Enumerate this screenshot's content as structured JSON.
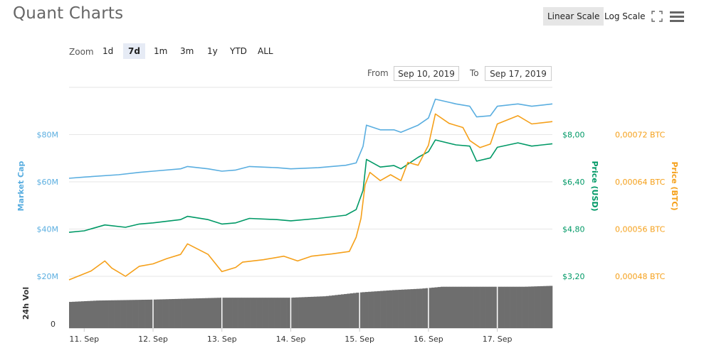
{
  "header": {
    "title": "Quant Charts",
    "linear_scale": "Linear Scale",
    "log_scale": "Log Scale"
  },
  "zoom": {
    "label": "Zoom",
    "buttons": [
      "1d",
      "7d",
      "1m",
      "3m",
      "1y",
      "YTD",
      "ALL"
    ],
    "active": "7d"
  },
  "range": {
    "from_label": "From",
    "from_value": "Sep 10, 2019",
    "to_label": "To",
    "to_value": "Sep 17, 2019"
  },
  "icons": {
    "fullscreen": "fullscreen-icon",
    "menu": "hamburger-menu-icon"
  },
  "colors": {
    "market_cap": "#5aaee0",
    "price_usd": "#009966",
    "price_btc": "#f5a01a",
    "volume": "#6e6e6e"
  },
  "chart_data": {
    "type": "line",
    "x_axis": {
      "tick_labels": [
        "11. Sep",
        "12. Sep",
        "13. Sep",
        "14. Sep",
        "15. Sep",
        "16. Sep",
        "17. Sep"
      ],
      "range": [
        10.78,
        17.8
      ]
    },
    "axes": {
      "market_cap": {
        "title": "Market Cap",
        "tick_labels": [
          "$20M",
          "$40M",
          "$60M",
          "$80M"
        ],
        "ticks": [
          20,
          40,
          60,
          80
        ],
        "range": [
          20,
          100
        ]
      },
      "price_usd": {
        "title": "Price (USD)",
        "tick_labels": [
          "$3,20",
          "$4,80",
          "$6,40",
          "$8,00"
        ],
        "ticks": [
          3.2,
          4.8,
          6.4,
          8.0
        ],
        "range": [
          3.2,
          9.6
        ]
      },
      "price_btc": {
        "title": "Price (BTC)",
        "tick_labels": [
          "0,00048 BTC",
          "0,00056 BTC",
          "0,00064 BTC",
          "0,00072 BTC"
        ],
        "ticks": [
          0.00048,
          0.00056,
          0.00064,
          0.00072
        ],
        "range": [
          0.00048,
          0.0008
        ]
      },
      "volume": {
        "title": "24h Vol",
        "tick_labels": [
          "0"
        ],
        "range": [
          0,
          1
        ]
      }
    },
    "series": [
      {
        "name": "Market Cap",
        "axis": "market_cap",
        "points": [
          [
            10.78,
            61.5
          ],
          [
            11.0,
            62
          ],
          [
            11.5,
            63
          ],
          [
            11.8,
            64
          ],
          [
            12.0,
            64.5
          ],
          [
            12.4,
            65.5
          ],
          [
            12.5,
            66.5
          ],
          [
            12.8,
            65.5
          ],
          [
            13.0,
            64.5
          ],
          [
            13.2,
            65
          ],
          [
            13.4,
            66.5
          ],
          [
            13.8,
            66
          ],
          [
            14.0,
            65.5
          ],
          [
            14.4,
            66
          ],
          [
            14.8,
            67
          ],
          [
            14.95,
            68
          ],
          [
            15.05,
            75
          ],
          [
            15.1,
            84
          ],
          [
            15.3,
            82
          ],
          [
            15.5,
            82
          ],
          [
            15.6,
            81
          ],
          [
            15.85,
            84
          ],
          [
            16.0,
            87
          ],
          [
            16.1,
            95
          ],
          [
            16.4,
            93
          ],
          [
            16.6,
            92
          ],
          [
            16.7,
            87.5
          ],
          [
            16.9,
            88
          ],
          [
            17.0,
            92
          ],
          [
            17.3,
            93
          ],
          [
            17.5,
            92
          ],
          [
            17.8,
            93
          ]
        ]
      },
      {
        "name": "Price (USD)",
        "axis": "price_usd",
        "points": [
          [
            10.78,
            4.69
          ],
          [
            11.0,
            4.74
          ],
          [
            11.3,
            4.94
          ],
          [
            11.6,
            4.86
          ],
          [
            11.8,
            4.97
          ],
          [
            12.0,
            5.01
          ],
          [
            12.4,
            5.12
          ],
          [
            12.5,
            5.23
          ],
          [
            12.8,
            5.12
          ],
          [
            13.0,
            4.97
          ],
          [
            13.2,
            5.01
          ],
          [
            13.4,
            5.16
          ],
          [
            13.8,
            5.12
          ],
          [
            14.0,
            5.08
          ],
          [
            14.4,
            5.16
          ],
          [
            14.8,
            5.27
          ],
          [
            14.95,
            5.46
          ],
          [
            15.05,
            6.11
          ],
          [
            15.1,
            7.16
          ],
          [
            15.3,
            6.9
          ],
          [
            15.5,
            6.95
          ],
          [
            15.6,
            6.84
          ],
          [
            15.85,
            7.23
          ],
          [
            16.0,
            7.42
          ],
          [
            16.1,
            7.82
          ],
          [
            16.4,
            7.65
          ],
          [
            16.6,
            7.61
          ],
          [
            16.7,
            7.1
          ],
          [
            16.9,
            7.21
          ],
          [
            17.0,
            7.57
          ],
          [
            17.3,
            7.72
          ],
          [
            17.5,
            7.61
          ],
          [
            17.8,
            7.69
          ]
        ]
      },
      {
        "name": "Price (BTC)",
        "axis": "price_btc",
        "points": [
          [
            10.78,
            0.000474
          ],
          [
            11.1,
            0.000489
          ],
          [
            11.3,
            0.000506
          ],
          [
            11.4,
            0.000494
          ],
          [
            11.6,
            0.00048
          ],
          [
            11.8,
            0.000497
          ],
          [
            12.0,
            0.000501
          ],
          [
            12.2,
            0.00051
          ],
          [
            12.4,
            0.000517
          ],
          [
            12.5,
            0.000535
          ],
          [
            12.8,
            0.000517
          ],
          [
            13.0,
            0.000488
          ],
          [
            13.2,
            0.000495
          ],
          [
            13.3,
            0.000504
          ],
          [
            13.6,
            0.000508
          ],
          [
            13.9,
            0.000514
          ],
          [
            14.1,
            0.000506
          ],
          [
            14.3,
            0.000514
          ],
          [
            14.6,
            0.000518
          ],
          [
            14.85,
            0.000522
          ],
          [
            14.95,
            0.000546
          ],
          [
            15.02,
            0.000578
          ],
          [
            15.08,
            0.000635
          ],
          [
            15.15,
            0.000656
          ],
          [
            15.3,
            0.000642
          ],
          [
            15.45,
            0.000652
          ],
          [
            15.6,
            0.000642
          ],
          [
            15.7,
            0.000673
          ],
          [
            15.85,
            0.000668
          ],
          [
            16.0,
            0.000702
          ],
          [
            16.1,
            0.000755
          ],
          [
            16.3,
            0.000739
          ],
          [
            16.5,
            0.000732
          ],
          [
            16.6,
            0.00071
          ],
          [
            16.75,
            0.000698
          ],
          [
            16.9,
            0.000704
          ],
          [
            17.0,
            0.000738
          ],
          [
            17.3,
            0.000752
          ],
          [
            17.5,
            0.000738
          ],
          [
            17.8,
            0.000742
          ]
        ]
      },
      {
        "name": "24h Vol",
        "axis": "volume",
        "points": [
          [
            10.78,
            0.55
          ],
          [
            11.2,
            0.58
          ],
          [
            12.0,
            0.6
          ],
          [
            12.5,
            0.62
          ],
          [
            13.0,
            0.64
          ],
          [
            13.5,
            0.64
          ],
          [
            14.0,
            0.64
          ],
          [
            14.5,
            0.67
          ],
          [
            15.0,
            0.75
          ],
          [
            15.5,
            0.8
          ],
          [
            15.9,
            0.83
          ],
          [
            16.2,
            0.87
          ],
          [
            16.6,
            0.87
          ],
          [
            17.0,
            0.87
          ],
          [
            17.4,
            0.87
          ],
          [
            17.8,
            0.89
          ]
        ]
      }
    ]
  }
}
